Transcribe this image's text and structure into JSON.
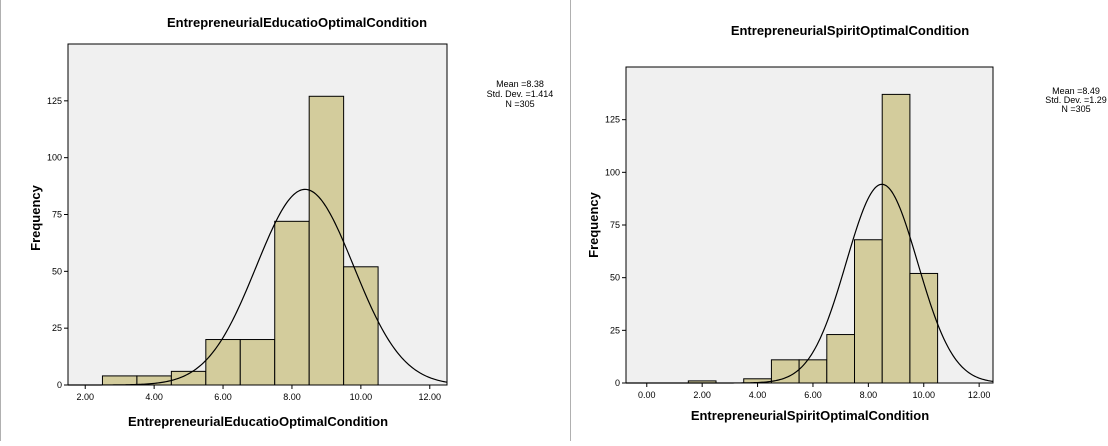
{
  "chart_data": [
    {
      "type": "bar",
      "subtype": "histogram-with-normal-curve",
      "title": "EntrepreneurialEducatioOptimalCondition",
      "xlabel": "EntrepreneurialEducatioOptimalCondition",
      "ylabel": "Frequency",
      "xlim": [
        1.5,
        12.5
      ],
      "ylim": [
        0,
        150
      ],
      "xticks": [
        2,
        4,
        6,
        8,
        10,
        12
      ],
      "xtick_labels": [
        "2.00",
        "4.00",
        "6.00",
        "8.00",
        "10.00",
        "12.00"
      ],
      "yticks": [
        0,
        25,
        50,
        75,
        100,
        125
      ],
      "bin_width": 1,
      "bins": [
        {
          "start": 2.5,
          "count": 4
        },
        {
          "start": 3.5,
          "count": 4
        },
        {
          "start": 4.5,
          "count": 6
        },
        {
          "start": 5.5,
          "count": 20
        },
        {
          "start": 6.5,
          "count": 20
        },
        {
          "start": 7.5,
          "count": 72
        },
        {
          "start": 8.5,
          "count": 127
        },
        {
          "start": 9.5,
          "count": 52
        }
      ],
      "stats": {
        "mean": 8.38,
        "std_dev": 1.414,
        "n": 305
      },
      "stats_lines": [
        "Mean =8.38",
        "Std. Dev. =1.414",
        "N =305"
      ],
      "grid": false,
      "bar_color": "#d3cc9c",
      "bar_edge_color": "#000000",
      "plot_background": "#f0f0f0"
    },
    {
      "type": "bar",
      "subtype": "histogram-with-normal-curve",
      "title": "EntrepreneurialSpiritOptimalCondition",
      "xlabel": "EntrepreneurialSpiritOptimalCondition",
      "ylabel": "Frequency",
      "xlim": [
        -0.75,
        12.5
      ],
      "ylim": [
        0,
        150
      ],
      "xticks": [
        0,
        2,
        4,
        6,
        8,
        10,
        12
      ],
      "xtick_labels": [
        "0.00",
        "2.00",
        "4.00",
        "6.00",
        "8.00",
        "10.00",
        "12.00"
      ],
      "yticks": [
        0,
        25,
        50,
        75,
        100,
        125
      ],
      "bin_width": 1,
      "bins": [
        {
          "start": 1.5,
          "count": 1
        },
        {
          "start": 3.5,
          "count": 2
        },
        {
          "start": 4.5,
          "count": 11
        },
        {
          "start": 5.5,
          "count": 11
        },
        {
          "start": 6.5,
          "count": 23
        },
        {
          "start": 7.5,
          "count": 68
        },
        {
          "start": 8.5,
          "count": 137
        },
        {
          "start": 9.5,
          "count": 52
        }
      ],
      "stats": {
        "mean": 8.49,
        "std_dev": 1.29,
        "n": 305
      },
      "stats_lines": [
        "Mean =8.49",
        "Std. Dev. =1.29",
        "N =305"
      ],
      "grid": false,
      "bar_color": "#d3cc9c",
      "bar_edge_color": "#000000",
      "plot_background": "#f0f0f0"
    }
  ]
}
